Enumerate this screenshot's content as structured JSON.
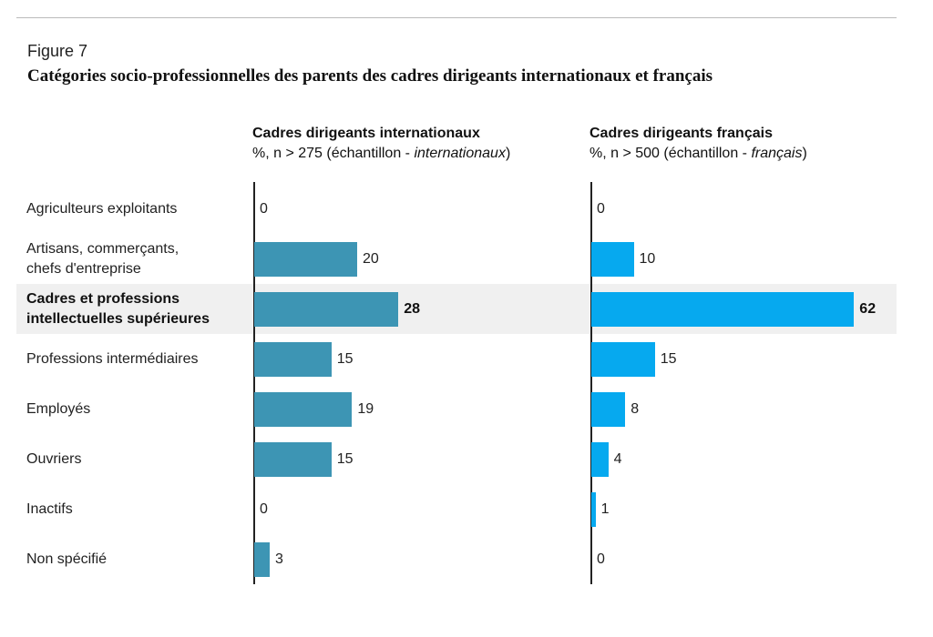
{
  "figure_label": "Figure 7",
  "chart_data": {
    "type": "bar",
    "orientation": "horizontal",
    "title": "Catégories socio-professionnelles des parents des cadres dirigeants internationaux et français",
    "categories": [
      "Agriculteurs exploitants",
      "Artisans, commerçants, chefs d'entreprise",
      "Cadres et professions intellectuelles supérieures",
      "Professions intermédiaires",
      "Employés",
      "Ouvriers",
      "Inactifs",
      "Non spécifié"
    ],
    "highlighted_category": "Cadres et professions intellectuelles supérieures",
    "grid": false,
    "panels": [
      {
        "title": "Cadres dirigeants internationaux",
        "subtitle_prefix": "%, n > 275 (échantillon - ",
        "subtitle_italic": "internationaux",
        "subtitle_suffix": ")",
        "color": "#3d95b4",
        "values": [
          0,
          20,
          28,
          15,
          19,
          15,
          0,
          3
        ]
      },
      {
        "title": "Cadres dirigeants français",
        "subtitle_prefix": "%, n > 500 (échantillon - ",
        "subtitle_italic": "français",
        "subtitle_suffix": ")",
        "color": "#06a9ef",
        "values": [
          0,
          10,
          62,
          15,
          8,
          4,
          1,
          0
        ]
      }
    ]
  }
}
